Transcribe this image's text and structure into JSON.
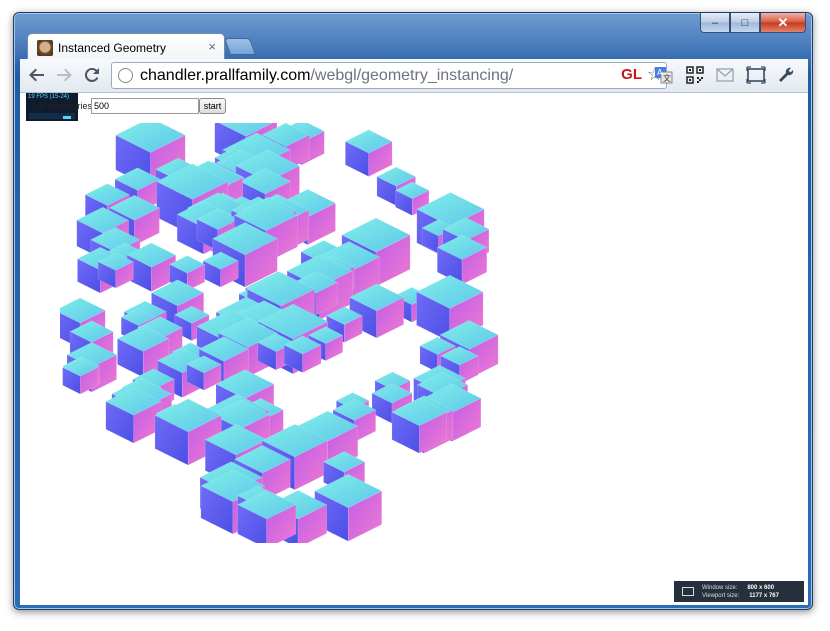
{
  "window": {
    "caption": {
      "minimize": "–",
      "maximize": "□",
      "close": "✕"
    }
  },
  "tab": {
    "title": "Instanced Geometry",
    "close": "×"
  },
  "toolbar": {
    "back_icon": "back-arrow-icon",
    "forward_icon": "forward-arrow-icon",
    "reload_icon": "reload-icon",
    "url_host": "chandler.prallfamily.com",
    "url_path": "/webgl/geometry_instancing/",
    "gl_badge": "GL",
    "extensions": [
      "translate-icon",
      "qr-code-icon",
      "mail-icon",
      "window-resizer-icon",
      "wrench-icon"
    ]
  },
  "page": {
    "stats_text": "19 FPS (15-24)",
    "label": "# geometries:",
    "count_value": "500",
    "start_label": "start"
  },
  "sizebox": {
    "window_label": "Window size:",
    "window_value": "800 x 600",
    "viewport_label": "Viewport size:",
    "viewport_value": "1177 x 767"
  },
  "colors": {
    "cube_cyan": "#5fe0e6",
    "cube_blue": "#5a5cf2",
    "cube_violet": "#8c5af0",
    "cube_magenta": "#e060e0",
    "cube_pink": "#f080c0"
  }
}
